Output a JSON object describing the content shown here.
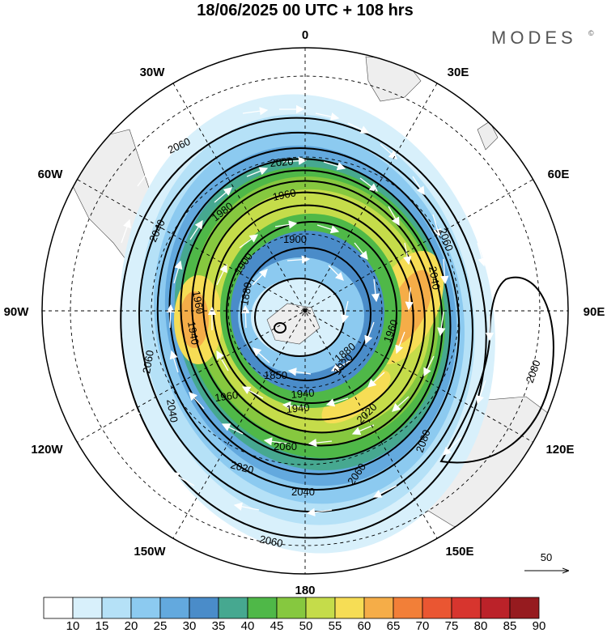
{
  "header": {
    "title": "18/06/2025  00 UTC  + 108 hrs",
    "brand": "MODES",
    "brand_mark": "©"
  },
  "map": {
    "projection": "south-polar-stereographic",
    "longitude_labels": {
      "top": "0",
      "top_left": "30W",
      "top_right": "30E",
      "upper_left": "60W",
      "upper_right": "60E",
      "left": "90W",
      "right": "90E",
      "lower_left": "120W",
      "lower_right": "120E",
      "bottom_left": "150W",
      "bottom_right": "150E",
      "bottom": "180"
    },
    "contour_labels": [
      "2060",
      "2020",
      "1960",
      "1980",
      "1900",
      "2040",
      "1960",
      "1900",
      "1940",
      "1850",
      "1880",
      "2060",
      "2040",
      "1960",
      "1940",
      "1920",
      "1960",
      "2020",
      "2060",
      "2060",
      "2020",
      "2040",
      "2060",
      "2040",
      "2080",
      "2080",
      "2060",
      "1880",
      "1940"
    ],
    "vector_reference": {
      "value": "50"
    }
  },
  "colorbar": {
    "labels": [
      "10",
      "15",
      "20",
      "25",
      "30",
      "35",
      "40",
      "45",
      "50",
      "55",
      "60",
      "65",
      "70",
      "75",
      "80",
      "85",
      "90"
    ],
    "colors": [
      "#ffffff",
      "#d8f0fb",
      "#b5e1f7",
      "#8ccaf0",
      "#63a9de",
      "#4a8cc9",
      "#46a890",
      "#4fb848",
      "#86c83f",
      "#c5dc4a",
      "#f6dd55",
      "#f5ad48",
      "#f27f38",
      "#ea5632",
      "#d7352e",
      "#bb2229",
      "#961b1f"
    ]
  }
}
